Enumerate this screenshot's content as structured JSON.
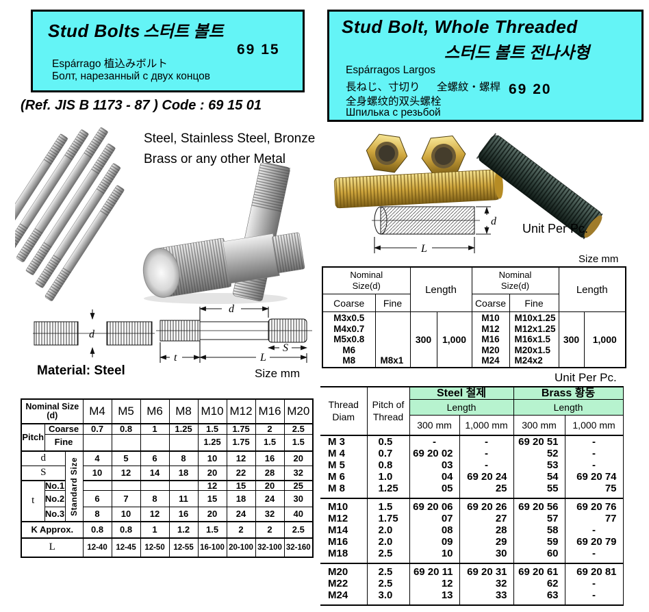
{
  "colors": {
    "cyan": "#64f4f6",
    "green": "#b7f3cf"
  },
  "left": {
    "header": {
      "title": "Stud Bolts",
      "title_ko": "스터트 볼트",
      "subtitle_es_jp": "Espárrago 植込みボルト",
      "subtitle_ru": "Болт, нарезанный с двух концов",
      "code": "69 15"
    },
    "ref_line": "(Ref. JIS B 1173 - 87 ) Code : 69 15 01",
    "note_line1": "Steel, Stainless Steel, Bronze",
    "note_line2": "Brass or any other Metal",
    "material_label": "Material: Steel",
    "size_unit_label": "Size mm",
    "drawing1": {
      "d": "d"
    },
    "drawing2": {
      "d": "d",
      "t": "t",
      "L": "L",
      "S": "S"
    },
    "spec_table": {
      "corner_label_line1": "Nominal Size",
      "corner_label_line2": "(d)",
      "columns": [
        "M4",
        "M5",
        "M6",
        "M8",
        "M10",
        "M12",
        "M16",
        "M20"
      ],
      "pitch_label": "Pitch",
      "coarse_label": "Coarse",
      "fine_label": "Fine",
      "t_label": "t",
      "standard_size_label": "Standard Size",
      "rows": [
        {
          "label": "Coarse",
          "values": [
            "0.7",
            "0.8",
            "1",
            "1.25",
            "1.5",
            "1.75",
            "2",
            "2.5"
          ]
        },
        {
          "label": "Fine",
          "values": [
            "",
            "",
            "",
            "",
            "1.25",
            "1.75",
            "1.5",
            "1.5"
          ]
        },
        {
          "label": "d",
          "values": [
            "4",
            "5",
            "6",
            "8",
            "10",
            "12",
            "16",
            "20"
          ]
        },
        {
          "label": "S",
          "values": [
            "10",
            "12",
            "14",
            "18",
            "20",
            "22",
            "28",
            "32"
          ]
        },
        {
          "label": "No.1",
          "values": [
            "",
            "",
            "",
            "",
            "12",
            "15",
            "20",
            "25"
          ]
        },
        {
          "label": "No.2",
          "values": [
            "6",
            "7",
            "8",
            "11",
            "15",
            "18",
            "24",
            "30"
          ]
        },
        {
          "label": "No.3",
          "values": [
            "8",
            "10",
            "12",
            "16",
            "20",
            "24",
            "32",
            "40"
          ]
        },
        {
          "label": "K Approx.",
          "values": [
            "0.8",
            "0.8",
            "1",
            "1.2",
            "1.5",
            "2",
            "2",
            "2.5"
          ]
        },
        {
          "label": "L",
          "values": [
            "12-40",
            "12-45",
            "12-50",
            "12-55",
            "16-100",
            "20-100",
            "32-100",
            "32-160"
          ]
        }
      ]
    }
  },
  "right": {
    "header": {
      "title": "Stud Bolt, Whole Threaded",
      "title_ko": "스터드 볼트 전나사형",
      "subtitle_es": "Espárragos Largos",
      "subtitle_jp": "長ねじ、寸切り",
      "subtitle_zh_trad": "全螺紋・螺桿",
      "code": "69 20",
      "subtitle_zh": "全身螺纹的双头螺栓",
      "subtitle_ru": "Шпилька с резьбой"
    },
    "unit_label": "Unit Per Pc.",
    "size_unit_label": "Size mm",
    "drawing": {
      "d": "d",
      "L": "L"
    },
    "size_table": {
      "nominal_label_line1": "Nominal",
      "nominal_label_line2": "Size(d)",
      "coarse_label": "Coarse",
      "fine_label": "Fine",
      "length_label": "Length",
      "half1": {
        "coarse": [
          "M3x0.5",
          "M4x0.7",
          "M5x0.8",
          "M6",
          "M8"
        ],
        "fine": [
          "",
          "",
          "",
          "",
          "M8x1"
        ],
        "len300": "300",
        "len1000": "1,000"
      },
      "half2": {
        "coarse": [
          "M10",
          "M12",
          "M16",
          "M20",
          "M24"
        ],
        "fine": [
          "M10x1.25",
          "M12x1.25",
          "M16x1.5",
          "M20x1.5",
          "M24x2"
        ],
        "len300": "300",
        "len1000": "1,000"
      }
    },
    "unit_label2": "Unit Per Pc.",
    "price_table": {
      "thread_diam_label_line1": "Thread",
      "thread_diam_label_line2": "Diam",
      "pitch_label_line1": "Pitch of",
      "pitch_label_line2": "Thread",
      "steel_label": "Steel 철제",
      "brass_label": "Brass 황동",
      "length_label": "Length",
      "len300_label": "300 mm",
      "len1000_label": "1,000 mm",
      "groups": [
        {
          "rows": [
            [
              "M 3",
              "0.5",
              "-",
              "-",
              "69 20 51",
              "-"
            ],
            [
              "M 4",
              "0.7",
              "69 20 02",
              "-",
              "52",
              "-"
            ],
            [
              "M 5",
              "0.8",
              "03",
              "-",
              "53",
              "-"
            ],
            [
              "M 6",
              "1.0",
              "04",
              "69 20 24",
              "54",
              "69 20 74"
            ],
            [
              "M 8",
              "1.25",
              "05",
              "25",
              "55",
              "75"
            ]
          ]
        },
        {
          "rows": [
            [
              "M10",
              "1.5",
              "69 20 06",
              "69 20 26",
              "69 20 56",
              "69 20 76"
            ],
            [
              "M12",
              "1.75",
              "07",
              "27",
              "57",
              "77"
            ],
            [
              "M14",
              "2.0",
              "08",
              "28",
              "58",
              "-"
            ],
            [
              "M16",
              "2.0",
              "09",
              "29",
              "59",
              "69 20 79"
            ],
            [
              "M18",
              "2.5",
              "10",
              "30",
              "60",
              "-"
            ]
          ]
        },
        {
          "rows": [
            [
              "M20",
              "2.5",
              "69 20 11",
              "69 20 31",
              "69 20 61",
              "69 20 81"
            ],
            [
              "M22",
              "2.5",
              "12",
              "32",
              "62",
              "-"
            ],
            [
              "M24",
              "3.0",
              "13",
              "33",
              "63",
              "-"
            ]
          ]
        }
      ]
    }
  }
}
